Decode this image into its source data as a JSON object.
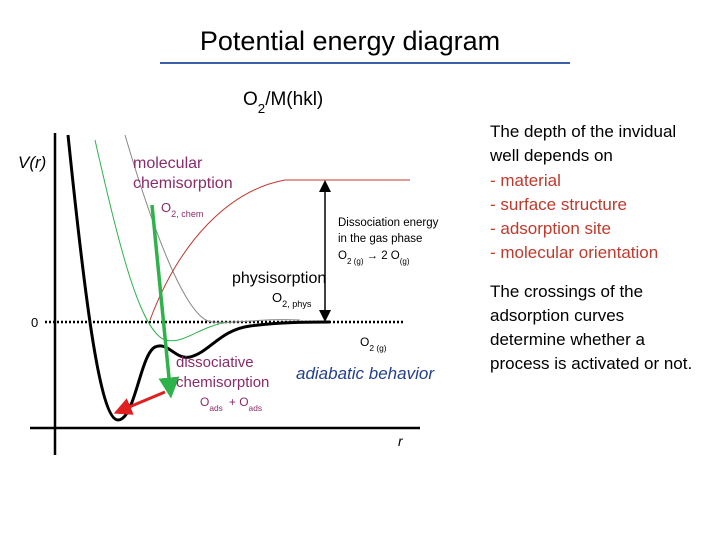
{
  "title": "Potential energy diagram",
  "system": {
    "species": "O",
    "subscript": "2",
    "surface": "/M(hkl)"
  },
  "axes": {
    "y_label": "V(r)",
    "zero": "0",
    "x_label": "r"
  },
  "labels": {
    "molecular_chemisorption": [
      "molecular",
      "chemisorption"
    ],
    "o2_chem": {
      "species": "O",
      "subscript": "2, chem"
    },
    "dissociation": [
      "Dissociation energy",
      "in the gas phase"
    ],
    "dissociation_reaction": {
      "a": "O",
      "a_sub": "2 (g)",
      "arrow": "→ 2 O",
      "b_sub": "(g)"
    },
    "physisorption": "physisorption",
    "o2_phys": {
      "species": "O",
      "subscript": "2, phys"
    },
    "o2_gas": {
      "species": "O",
      "subscript": "2 (g)"
    },
    "dissociative_chemisorption": [
      "dissociative",
      "chemisorption"
    ],
    "o_ads": {
      "o1": "O",
      "sub1": "ads",
      "plus": "+ O",
      "sub2": "ads"
    },
    "adiabatic": "adiabatic behavior"
  },
  "notes": {
    "depth": {
      "intro": [
        "The depth of the invidual",
        "well depends on"
      ],
      "factors": [
        "- material",
        "- surface structure",
        "- adsorption site",
        "- molecular orientation"
      ]
    },
    "crossings": [
      "The crossings of the",
      "adsorption curves",
      "determine whether a",
      "process is activated or not."
    ]
  }
}
